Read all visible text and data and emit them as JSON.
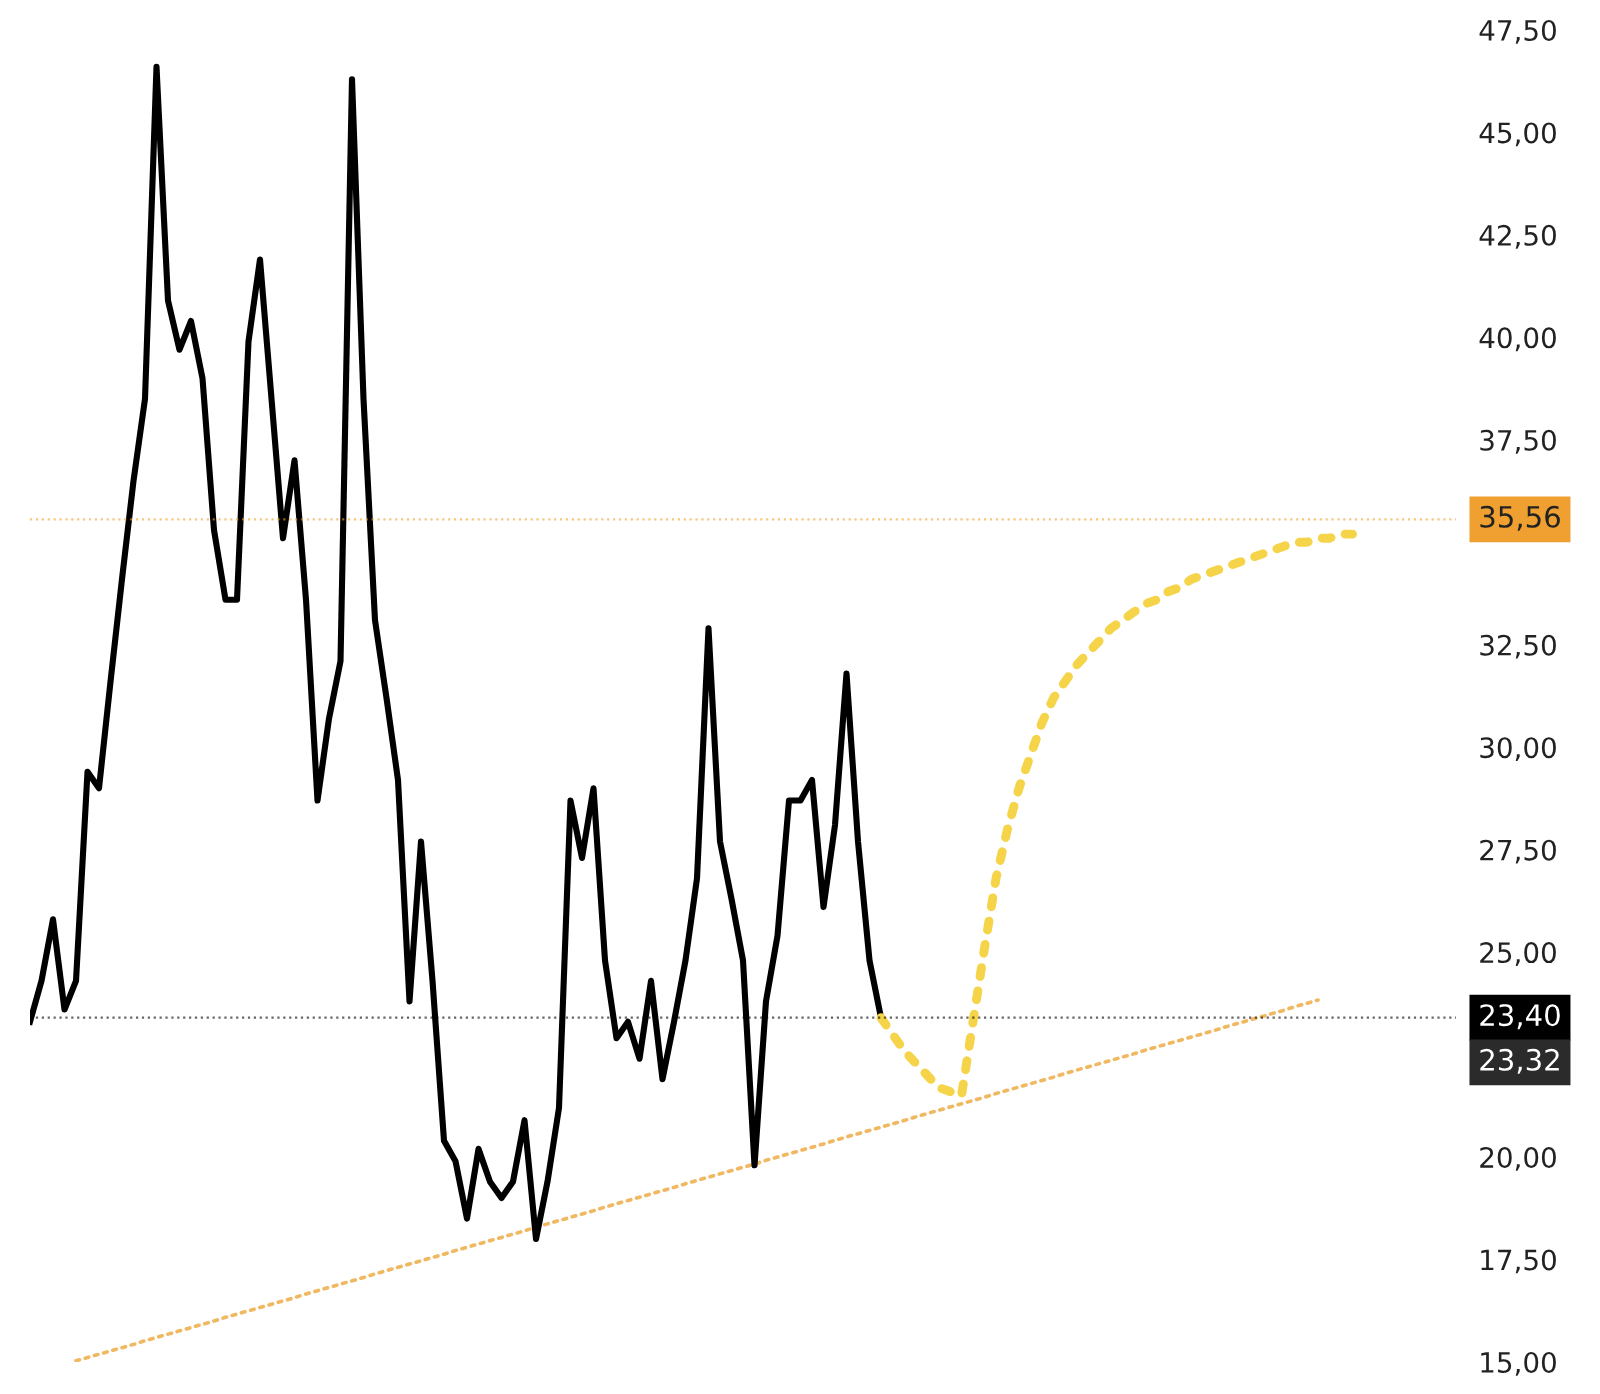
{
  "chart_data": {
    "type": "line",
    "categories": [
      null,
      null,
      null,
      null,
      null,
      null,
      null,
      null,
      null,
      null,
      null,
      null,
      null,
      null,
      null,
      null,
      null,
      null,
      null,
      null,
      null,
      null,
      null,
      null,
      null,
      null,
      null,
      null,
      null,
      null,
      null,
      null,
      null,
      null,
      null,
      null,
      null,
      null,
      null,
      null,
      null,
      null,
      null,
      null,
      null,
      null,
      null,
      null,
      null,
      null,
      null,
      null,
      null,
      null,
      null,
      null,
      null,
      null,
      null,
      null,
      null,
      null,
      null,
      null,
      null,
      null,
      null,
      null,
      null,
      null,
      null,
      null,
      null,
      null,
      null,
      null,
      null,
      null,
      null,
      null,
      null,
      null,
      null,
      null,
      null,
      null,
      null,
      null,
      null,
      null,
      null,
      null,
      null,
      null,
      null,
      null,
      null,
      null,
      null,
      null,
      null,
      null,
      null,
      null,
      null,
      null,
      null,
      null,
      null,
      null,
      null,
      null,
      null,
      null,
      null,
      null,
      null,
      null,
      null,
      null,
      null,
      null,
      null,
      null,
      null
    ],
    "series": [
      {
        "color": "#f0b860",
        "line_style": "dotted",
        "values": [
          null,
          null,
          null,
          null,
          15.03,
          15.11,
          15.19,
          15.27,
          15.35,
          15.43,
          15.52,
          15.6,
          15.68,
          15.76,
          15.84,
          15.92,
          16.0,
          16.09,
          16.17,
          16.25,
          16.33,
          16.41,
          16.49,
          16.57,
          16.66,
          16.74,
          16.82,
          16.9,
          16.98,
          17.06,
          17.15,
          17.23,
          17.31,
          17.39,
          17.47,
          17.55,
          17.63,
          17.72,
          17.8,
          17.88,
          17.96,
          18.04,
          18.12,
          18.2,
          18.29,
          18.37,
          18.45,
          18.53,
          18.61,
          18.69,
          18.78,
          18.86,
          18.94,
          19.02,
          19.1,
          19.18,
          19.26,
          19.35,
          19.43,
          19.51,
          19.59,
          19.67,
          19.75,
          19.83,
          19.92,
          20.0,
          20.08,
          20.16,
          20.24,
          20.32,
          20.41,
          20.49,
          20.57,
          20.65,
          20.73,
          20.81,
          20.89,
          20.98,
          21.06,
          21.14,
          21.22,
          21.3,
          21.38,
          21.46,
          21.55,
          21.63,
          21.71,
          21.79,
          21.87,
          21.95,
          22.04,
          22.12,
          22.2,
          22.28,
          22.36,
          22.44,
          22.52,
          22.61,
          22.69,
          22.77,
          22.85,
          22.93,
          23.01,
          23.09,
          23.18,
          23.26,
          23.34,
          23.42,
          23.5,
          23.58,
          23.67,
          23.75,
          23.83,
          null,
          null,
          null,
          null,
          null,
          null,
          null,
          null,
          null,
          null,
          null,
          null
        ]
      },
      {
        "color": "#000000",
        "line_style": "solid",
        "values": [
          23.3,
          24.3,
          25.8,
          23.6,
          24.3,
          29.4,
          29.0,
          31.6,
          34.1,
          36.5,
          38.5,
          46.6,
          40.9,
          39.7,
          40.4,
          39.0,
          35.3,
          33.6,
          33.6,
          39.9,
          41.9,
          38.5,
          35.1,
          37.0,
          33.6,
          28.7,
          30.7,
          32.1,
          46.3,
          38.5,
          33.1,
          31.2,
          29.2,
          23.8,
          27.7,
          24.3,
          20.4,
          19.9,
          18.5,
          20.2,
          19.4,
          19.0,
          19.4,
          20.9,
          18.0,
          19.4,
          21.2,
          28.7,
          27.3,
          29.0,
          24.8,
          22.9,
          23.3,
          22.4,
          24.3,
          21.9,
          23.3,
          24.8,
          26.8,
          32.9,
          27.7,
          26.3,
          24.8,
          19.8,
          23.8,
          25.4,
          28.7,
          28.7,
          29.2,
          26.1,
          28.1,
          31.8,
          27.7,
          24.8,
          23.4,
          null,
          null,
          null,
          null,
          null,
          null,
          null,
          null,
          null,
          null,
          null,
          null,
          null,
          null,
          null,
          null,
          null,
          null,
          null,
          null,
          null,
          null,
          null,
          null,
          null,
          null,
          null,
          null,
          null,
          null,
          null,
          null,
          null,
          null,
          null,
          null,
          null,
          null,
          null,
          null,
          null,
          null,
          null,
          null,
          null,
          null,
          null,
          null,
          null,
          null
        ]
      },
      {
        "color": "#f5d44a",
        "line_style": "dotted",
        "values": [
          null,
          null,
          null,
          null,
          null,
          null,
          null,
          null,
          null,
          null,
          null,
          null,
          null,
          null,
          null,
          null,
          null,
          null,
          null,
          null,
          null,
          null,
          null,
          null,
          null,
          null,
          null,
          null,
          null,
          null,
          null,
          null,
          null,
          null,
          null,
          null,
          null,
          null,
          null,
          null,
          null,
          null,
          null,
          null,
          null,
          null,
          null,
          null,
          null,
          null,
          null,
          null,
          null,
          null,
          null,
          null,
          null,
          null,
          null,
          null,
          null,
          null,
          null,
          null,
          null,
          null,
          null,
          null,
          null,
          null,
          null,
          null,
          null,
          null,
          23.4,
          23.0,
          22.6,
          22.3,
          22.0,
          21.7,
          21.6,
          21.5,
          23.3,
          25.1,
          26.8,
          28.0,
          29.0,
          29.8,
          30.6,
          31.2,
          31.6,
          32.0,
          32.3,
          32.6,
          32.9,
          33.1,
          33.3,
          33.5,
          33.6,
          33.8,
          33.9,
          34.1,
          34.2,
          34.3,
          34.4,
          34.5,
          34.6,
          34.7,
          34.8,
          34.9,
          35.0,
          35.0,
          35.1,
          35.1,
          35.2,
          35.2,
          null,
          null,
          null,
          null,
          null,
          null,
          null,
          null,
          null
        ]
      }
    ],
    "ylim": [
      15,
      47.5
    ],
    "yticks": [
      {
        "value": 15,
        "label": "15,00"
      },
      {
        "value": 17.5,
        "label": "17,50"
      },
      {
        "value": 20,
        "label": "20,00"
      },
      {
        "value": 25,
        "label": "25,00"
      },
      {
        "value": 27.5,
        "label": "27,50"
      },
      {
        "value": 30,
        "label": "30,00"
      },
      {
        "value": 32.5,
        "label": "32,50"
      },
      {
        "value": 37.5,
        "label": "37,50"
      },
      {
        "value": 40,
        "label": "40,00"
      },
      {
        "value": 42.5,
        "label": "42,50"
      },
      {
        "value": 45,
        "label": "45,00"
      },
      {
        "value": 47.5,
        "label": "47,50"
      }
    ],
    "tick_labels": "y",
    "grid": false,
    "ref_lines": [
      {
        "axis": "y",
        "value": 35.56,
        "label": "35,56",
        "color": "#f0a030",
        "line_style": "dotted"
      },
      {
        "axis": "y",
        "value": 23.4,
        "label": "23,40",
        "color": "#000000",
        "line_style": "dotted"
      }
    ],
    "annotations": [
      "23,32"
    ]
  }
}
